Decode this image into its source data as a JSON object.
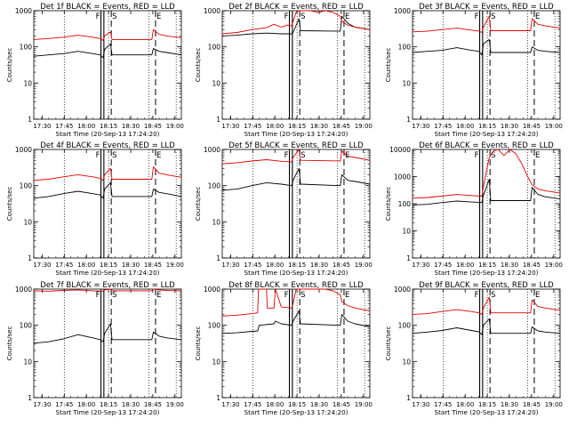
{
  "page": {
    "caption": "",
    "colors": {
      "events": "#000000",
      "lld": "#e00000",
      "background": "#ffffff",
      "axis": "#000000"
    }
  },
  "shared": {
    "ylabel": "Counts/sec",
    "xlabel": "Start Time (20-Sep-13 17:24:20)",
    "x_ticks": [
      "17:30",
      "17:45",
      "18:00",
      "18:15",
      "18:30",
      "18:45",
      "19:00"
    ],
    "x_tick_minutes": [
      5.67,
      20.67,
      35.67,
      50.67,
      65.67,
      80.67,
      95.67
    ],
    "x_range_minutes": [
      0,
      100
    ],
    "markers_minutes": {
      "F1": 47.5,
      "S": 52.5,
      "E": 82.5
    },
    "dotted_minutes": [
      20.67,
      50.67,
      78.0,
      96.5
    ],
    "series_names": {
      "events": "Events",
      "lld": "LLD"
    }
  },
  "chart_data": [
    {
      "id": "det1f",
      "title": "Det 1f BLACK = Events, RED = LLD",
      "type": "line",
      "yscale": "log",
      "ylim": [
        1,
        1000
      ],
      "y_ticks": [
        "1",
        "10",
        "100",
        "1000"
      ],
      "flags": [
        "F",
        "S",
        "E"
      ],
      "series": [
        {
          "name": "Events",
          "color": "#000000",
          "x": [
            0,
            10,
            20,
            30,
            40,
            45,
            47,
            48,
            52,
            53,
            80,
            81,
            85,
            90,
            100
          ],
          "y": [
            55,
            60,
            65,
            75,
            65,
            60,
            50,
            85,
            120,
            60,
            60,
            90,
            75,
            70,
            60
          ]
        },
        {
          "name": "LLD",
          "color": "#e00000",
          "x": [
            0,
            10,
            20,
            30,
            40,
            45,
            47,
            48,
            52,
            53,
            80,
            81,
            85,
            90,
            100
          ],
          "y": [
            160,
            170,
            185,
            210,
            185,
            170,
            150,
            200,
            260,
            160,
            160,
            300,
            220,
            200,
            180
          ]
        }
      ]
    },
    {
      "id": "det2f",
      "title": "Det 2f BLACK = Events, RED = LLD",
      "type": "line",
      "yscale": "log",
      "ylim": [
        1,
        1000
      ],
      "y_ticks": [
        "1",
        "10",
        "100",
        "1000"
      ],
      "flags": [
        "F",
        "S",
        "E"
      ],
      "series": [
        {
          "name": "Events",
          "color": "#000000",
          "x": [
            0,
            10,
            20,
            30,
            40,
            47,
            48,
            52,
            53,
            80,
            81,
            85,
            90,
            100
          ],
          "y": [
            200,
            210,
            230,
            240,
            230,
            230,
            250,
            600,
            280,
            270,
            700,
            450,
            350,
            300
          ]
        },
        {
          "name": "LLD",
          "color": "#e00000",
          "x": [
            0,
            10,
            20,
            30,
            35,
            40,
            44,
            47,
            48,
            50,
            52,
            55,
            60,
            65,
            70,
            75,
            80,
            81,
            85,
            90,
            100
          ],
          "y": [
            230,
            250,
            300,
            340,
            420,
            350,
            400,
            380,
            500,
            900,
            1000,
            1000,
            1000,
            900,
            1000,
            900,
            700,
            500,
            400,
            350,
            300
          ]
        }
      ]
    },
    {
      "id": "det3f",
      "title": "Det 3f BLACK = Events, RED = LLD",
      "type": "line",
      "yscale": "log",
      "ylim": [
        1,
        1000
      ],
      "y_ticks": [
        "1",
        "10",
        "100",
        "1000"
      ],
      "flags": [
        "F",
        "S",
        "E"
      ],
      "series": [
        {
          "name": "Events",
          "color": "#000000",
          "x": [
            0,
            10,
            20,
            30,
            40,
            45,
            47,
            48,
            52,
            53,
            80,
            81,
            85,
            90,
            100
          ],
          "y": [
            70,
            75,
            80,
            95,
            80,
            75,
            60,
            120,
            160,
            70,
            70,
            100,
            80,
            75,
            70
          ]
        },
        {
          "name": "LLD",
          "color": "#e00000",
          "x": [
            0,
            10,
            20,
            30,
            40,
            45,
            47,
            48,
            52,
            53,
            80,
            81,
            85,
            90,
            100
          ],
          "y": [
            260,
            270,
            300,
            330,
            290,
            270,
            250,
            350,
            700,
            280,
            280,
            600,
            420,
            380,
            330
          ]
        }
      ]
    },
    {
      "id": "det4f",
      "title": "Det 4f BLACK = Events, RED = LLD",
      "type": "line",
      "yscale": "log",
      "ylim": [
        1,
        1000
      ],
      "y_ticks": [
        "1",
        "10",
        "100",
        "1000"
      ],
      "flags": [
        "F",
        "S",
        "E"
      ],
      "series": [
        {
          "name": "Events",
          "color": "#000000",
          "x": [
            0,
            10,
            20,
            30,
            40,
            45,
            47,
            48,
            52,
            53,
            80,
            81,
            85,
            90,
            100
          ],
          "y": [
            45,
            50,
            60,
            70,
            60,
            55,
            45,
            80,
            120,
            50,
            50,
            80,
            65,
            60,
            50
          ]
        },
        {
          "name": "LLD",
          "color": "#e00000",
          "x": [
            0,
            10,
            20,
            30,
            40,
            45,
            47,
            48,
            52,
            53,
            80,
            81,
            85,
            90,
            100
          ],
          "y": [
            140,
            150,
            175,
            200,
            175,
            160,
            140,
            200,
            300,
            150,
            150,
            330,
            220,
            200,
            170
          ]
        }
      ]
    },
    {
      "id": "det5f",
      "title": "Det 5f BLACK = Events, RED = LLD",
      "type": "line",
      "yscale": "log",
      "ylim": [
        1,
        1000
      ],
      "y_ticks": [
        "1",
        "10",
        "100",
        "1000"
      ],
      "flags": [
        "F",
        "S",
        "E"
      ],
      "series": [
        {
          "name": "Events",
          "color": "#000000",
          "x": [
            0,
            10,
            20,
            30,
            40,
            47,
            48,
            52,
            53,
            80,
            81,
            85,
            90,
            100
          ],
          "y": [
            75,
            80,
            100,
            120,
            110,
            100,
            140,
            300,
            110,
            100,
            200,
            140,
            130,
            110
          ]
        },
        {
          "name": "LLD",
          "color": "#e00000",
          "x": [
            0,
            10,
            20,
            30,
            40,
            47,
            48,
            52,
            53,
            80,
            81,
            85,
            90,
            100
          ],
          "y": [
            400,
            430,
            480,
            520,
            470,
            450,
            600,
            1000,
            500,
            480,
            900,
            650,
            600,
            500
          ]
        }
      ]
    },
    {
      "id": "det6f",
      "title": "Det 6f BLACK = Events, RED = LLD",
      "type": "line",
      "yscale": "log",
      "ylim": [
        1,
        10000
      ],
      "y_ticks": [
        "1",
        "10",
        "100",
        "1000",
        "10000"
      ],
      "flags": [
        "F",
        "S",
        "E"
      ],
      "series": [
        {
          "name": "Events",
          "color": "#000000",
          "x": [
            0,
            10,
            20,
            30,
            40,
            47,
            48,
            52,
            53,
            80,
            81,
            85,
            90,
            100
          ],
          "y": [
            90,
            95,
            110,
            125,
            115,
            110,
            200,
            800,
            130,
            130,
            400,
            220,
            180,
            150
          ]
        },
        {
          "name": "LLD",
          "color": "#e00000",
          "x": [
            0,
            10,
            20,
            30,
            40,
            47,
            48,
            50,
            52,
            55,
            58,
            62,
            66,
            70,
            74,
            78,
            81,
            85,
            90,
            100
          ],
          "y": [
            160,
            170,
            190,
            220,
            200,
            190,
            400,
            1500,
            5000,
            9000,
            10000,
            6000,
            10000,
            7000,
            3000,
            1000,
            500,
            350,
            300,
            250
          ]
        }
      ]
    },
    {
      "id": "det7f",
      "title": "Det 7f BLACK = Events, RED = LLD",
      "type": "line",
      "yscale": "log",
      "ylim": [
        1,
        1000
      ],
      "y_ticks": [
        "1",
        "10",
        "100",
        "1000"
      ],
      "flags": [
        "F",
        "S",
        "E"
      ],
      "series": [
        {
          "name": "Events",
          "color": "#000000",
          "x": [
            0,
            10,
            20,
            30,
            40,
            45,
            47,
            48,
            52,
            53,
            80,
            81,
            85,
            90,
            100
          ],
          "y": [
            32,
            35,
            42,
            55,
            45,
            40,
            35,
            60,
            110,
            40,
            40,
            65,
            50,
            45,
            40
          ]
        },
        {
          "name": "LLD",
          "color": "#e00000",
          "x": [
            0,
            10,
            20,
            30,
            40,
            47,
            48,
            52,
            53,
            80,
            81,
            85,
            90,
            100
          ],
          "y": [
            900,
            880,
            920,
            950,
            900,
            880,
            950,
            1000,
            900,
            900,
            1000,
            950,
            920,
            900
          ]
        }
      ]
    },
    {
      "id": "det8f",
      "title": "Det 8f BLACK = Events, RED = LLD",
      "type": "line",
      "yscale": "log",
      "ylim": [
        1,
        1000
      ],
      "y_ticks": [
        "1",
        "10",
        "100",
        "1000"
      ],
      "flags": [
        "F",
        "S",
        "E"
      ],
      "series": [
        {
          "name": "Events",
          "color": "#000000",
          "x": [
            0,
            10,
            20,
            24,
            25,
            35,
            36,
            40,
            47,
            48,
            52,
            53,
            80,
            81,
            85,
            90,
            100
          ],
          "y": [
            60,
            62,
            68,
            70,
            100,
            110,
            130,
            110,
            100,
            130,
            250,
            110,
            100,
            200,
            130,
            110,
            90
          ]
        },
        {
          "name": "LLD",
          "color": "#e00000",
          "x": [
            0,
            10,
            20,
            24,
            24.5,
            30,
            30.5,
            35,
            36,
            40,
            47,
            48,
            50,
            52,
            55,
            60,
            65,
            70,
            75,
            80,
            81,
            85,
            90,
            100
          ],
          "y": [
            180,
            190,
            210,
            220,
            1000,
            1000,
            300,
            300,
            1000,
            320,
            300,
            400,
            1000,
            1000,
            1000,
            1000,
            1000,
            1000,
            900,
            700,
            450,
            350,
            300,
            250
          ]
        }
      ]
    },
    {
      "id": "det9f",
      "title": "Det 9f BLACK = Events, RED = LLD",
      "type": "line",
      "yscale": "log",
      "ylim": [
        1,
        1000
      ],
      "y_ticks": [
        "1",
        "10",
        "100",
        "1000"
      ],
      "flags": [
        "F",
        "S",
        "E"
      ],
      "series": [
        {
          "name": "Events",
          "color": "#000000",
          "x": [
            0,
            10,
            20,
            30,
            40,
            45,
            47,
            48,
            52,
            53,
            80,
            81,
            85,
            90,
            100
          ],
          "y": [
            60,
            65,
            72,
            85,
            72,
            66,
            55,
            100,
            150,
            60,
            60,
            90,
            70,
            65,
            60
          ]
        },
        {
          "name": "LLD",
          "color": "#e00000",
          "x": [
            0,
            10,
            20,
            30,
            40,
            45,
            47,
            48,
            52,
            53,
            80,
            81,
            85,
            90,
            100
          ],
          "y": [
            200,
            210,
            240,
            270,
            240,
            220,
            200,
            300,
            600,
            220,
            220,
            500,
            330,
            300,
            260
          ]
        }
      ]
    }
  ]
}
